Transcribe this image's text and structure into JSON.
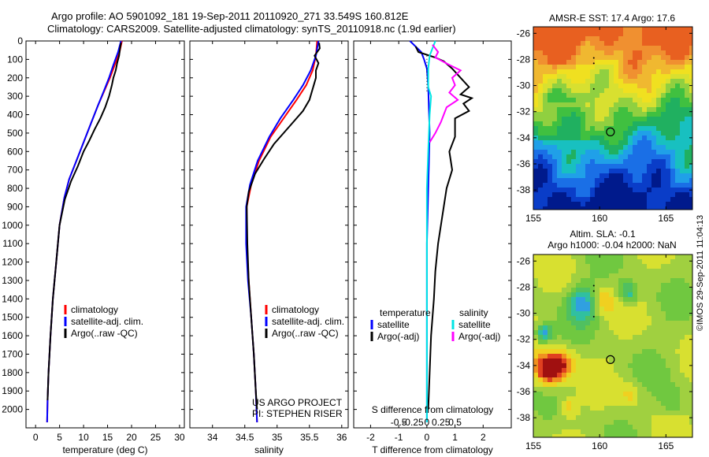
{
  "header": {
    "line1": "Argo profile: AO 5901092_181 19-Sep-2011 20110920_271 33.549S 160.812E",
    "line2": "Climatology: CARS2009. Satellite-adjusted climatology: synTS_20110918.nc (1.9d earlier)"
  },
  "colors": {
    "climatology": "#ff0000",
    "satellite": "#0000ff",
    "argo": "#000000",
    "satellite_salinity": "#00e5e5",
    "argo_salinity_adj": "#ff00ff"
  },
  "chart_data": [
    {
      "type": "line",
      "xlabel": "temperature (deg C)",
      "ylabel": "",
      "xlim": [
        -2,
        31
      ],
      "ylim": [
        2100,
        0
      ],
      "xticks": [
        "0",
        "5",
        "10",
        "15",
        "20",
        "25",
        "30"
      ],
      "yticks": [
        "0",
        "100",
        "200",
        "300",
        "400",
        "500",
        "600",
        "700",
        "800",
        "900",
        "1000",
        "1100",
        "1200",
        "1300",
        "1400",
        "1500",
        "1600",
        "1700",
        "1800",
        "1900",
        "2000"
      ],
      "legend": [
        "climatology",
        "satellite-adj. clim.",
        "Argo(..raw -QC)"
      ],
      "series": [
        {
          "name": "climatology",
          "color": "#ff0000",
          "points": [
            [
              18,
              0
            ],
            [
              17.5,
              60
            ],
            [
              16.5,
              130
            ],
            [
              15.5,
              200
            ],
            [
              14.5,
              260
            ],
            [
              13,
              350
            ],
            [
              11.5,
              450
            ],
            [
              10,
              550
            ],
            [
              8.5,
              650
            ],
            [
              7,
              750
            ],
            [
              6,
              850
            ],
            [
              5,
              1000
            ],
            [
              4.3,
              1200
            ],
            [
              3.6,
              1400
            ],
            [
              3.1,
              1600
            ],
            [
              2.7,
              1800
            ],
            [
              2.5,
              1950
            ],
            [
              2.4,
              2070
            ]
          ]
        },
        {
          "name": "satellite-adj. clim.",
          "color": "#0000ff",
          "points": [
            [
              17.8,
              0
            ],
            [
              17.2,
              60
            ],
            [
              16.2,
              130
            ],
            [
              15.3,
              200
            ],
            [
              14.4,
              260
            ],
            [
              13,
              350
            ],
            [
              11.5,
              450
            ],
            [
              10,
              550
            ],
            [
              8.5,
              650
            ],
            [
              7,
              750
            ],
            [
              6,
              850
            ],
            [
              5,
              1000
            ],
            [
              4.3,
              1200
            ],
            [
              3.6,
              1400
            ],
            [
              3.1,
              1600
            ],
            [
              2.7,
              1800
            ],
            [
              2.5,
              1950
            ],
            [
              2.4,
              2070
            ]
          ]
        },
        {
          "name": "Argo(..raw -QC)",
          "color": "#000000",
          "points": [
            [
              17.8,
              10
            ],
            [
              17.6,
              40
            ],
            [
              17.4,
              80
            ],
            [
              17,
              120
            ],
            [
              16.7,
              160
            ],
            [
              16.2,
              200
            ],
            [
              15.9,
              240
            ],
            [
              15.3,
              300
            ],
            [
              14.5,
              360
            ],
            [
              13.5,
              420
            ],
            [
              12.3,
              480
            ],
            [
              11.2,
              540
            ],
            [
              10,
              600
            ],
            [
              8.8,
              680
            ],
            [
              7.4,
              760
            ],
            [
              6.1,
              860
            ],
            [
              5,
              1000
            ],
            [
              4.3,
              1200
            ],
            [
              3.6,
              1400
            ],
            [
              3.1,
              1600
            ],
            [
              2.7,
              1800
            ],
            [
              2.5,
              1950
            ]
          ]
        }
      ]
    },
    {
      "type": "line",
      "xlabel": "salinity",
      "ylabel": "",
      "xlim": [
        33.65,
        36.1
      ],
      "ylim": [
        2100,
        0
      ],
      "xticks": [
        "34",
        "34.5",
        "35",
        "35.5",
        "36"
      ],
      "legend": [
        "climatology",
        "satellite-adj. clim.",
        "Argo(..raw -QC)"
      ],
      "annotation": [
        "US ARGO PROJECT",
        "PI: STEPHEN RISER"
      ],
      "series": [
        {
          "name": "climatology",
          "color": "#ff0000",
          "points": [
            [
              35.62,
              0
            ],
            [
              35.6,
              80
            ],
            [
              35.55,
              160
            ],
            [
              35.45,
              240
            ],
            [
              35.3,
              320
            ],
            [
              35.1,
              420
            ],
            [
              34.9,
              520
            ],
            [
              34.72,
              650
            ],
            [
              34.6,
              780
            ],
            [
              34.53,
              900
            ],
            [
              34.53,
              1100
            ],
            [
              34.56,
              1300
            ],
            [
              34.6,
              1500
            ],
            [
              34.64,
              1700
            ],
            [
              34.67,
              1900
            ],
            [
              34.69,
              2070
            ]
          ]
        },
        {
          "name": "satellite-adj. clim.",
          "color": "#0000ff",
          "points": [
            [
              35.64,
              0
            ],
            [
              35.6,
              80
            ],
            [
              35.52,
              160
            ],
            [
              35.4,
              240
            ],
            [
              35.25,
              320
            ],
            [
              35.05,
              420
            ],
            [
              34.88,
              520
            ],
            [
              34.7,
              650
            ],
            [
              34.58,
              780
            ],
            [
              34.52,
              900
            ],
            [
              34.52,
              1100
            ],
            [
              34.55,
              1300
            ],
            [
              34.6,
              1500
            ],
            [
              34.64,
              1700
            ],
            [
              34.67,
              1900
            ],
            [
              34.69,
              2070
            ]
          ]
        },
        {
          "name": "Argo(..raw -QC)",
          "color": "#000000",
          "points": [
            [
              35.65,
              10
            ],
            [
              35.66,
              40
            ],
            [
              35.58,
              80
            ],
            [
              35.64,
              120
            ],
            [
              35.6,
              160
            ],
            [
              35.6,
              200
            ],
            [
              35.55,
              260
            ],
            [
              35.5,
              320
            ],
            [
              35.4,
              380
            ],
            [
              35.25,
              440
            ],
            [
              35.1,
              500
            ],
            [
              34.95,
              560
            ],
            [
              34.8,
              640
            ],
            [
              34.66,
              720
            ],
            [
              34.56,
              820
            ],
            [
              34.53,
              900
            ],
            [
              34.54,
              1100
            ],
            [
              34.56,
              1300
            ],
            [
              34.6,
              1500
            ],
            [
              34.64,
              1700
            ],
            [
              34.67,
              1900
            ],
            [
              34.69,
              2000
            ]
          ]
        }
      ]
    },
    {
      "type": "line",
      "xlabel": "T difference from climatology",
      "xlabel2": "S difference from climatology",
      "xlim": [
        -2.6,
        3.0
      ],
      "ylim": [
        2100,
        0
      ],
      "xticks": [
        "-2",
        "-1",
        "0",
        "1",
        "2"
      ],
      "xticks_s": [
        "-0.5",
        "-0.25",
        "0",
        "0.25",
        "0.5"
      ],
      "legend_t_title": "temperature",
      "legend_s_title": "salinity",
      "legend": [
        "satellite",
        "Argo(-adj)",
        "satellite",
        "Argo(-adj)"
      ],
      "series": [
        {
          "name": "satellite",
          "color": "#0000ff",
          "points": [
            [
              -0.6,
              0
            ],
            [
              -0.2,
              60
            ],
            [
              -0.1,
              100
            ],
            [
              0,
              150
            ],
            [
              0.05,
              250
            ],
            [
              0.1,
              500
            ],
            [
              0.05,
              800
            ],
            [
              0,
              1100
            ],
            [
              0,
              1500
            ],
            [
              0,
              2070
            ]
          ]
        },
        {
          "name": "Argo(-adj)",
          "color": "#000000",
          "points": [
            [
              -0.4,
              30
            ],
            [
              -0.3,
              60
            ],
            [
              0.3,
              90
            ],
            [
              0.6,
              110
            ],
            [
              0.9,
              150
            ],
            [
              1.2,
              200
            ],
            [
              1.5,
              250
            ],
            [
              1.2,
              290
            ],
            [
              1.6,
              310
            ],
            [
              1.3,
              340
            ],
            [
              1.5,
              380
            ],
            [
              1.0,
              420
            ],
            [
              1.0,
              520
            ],
            [
              0.8,
              600
            ],
            [
              0.9,
              700
            ],
            [
              0.7,
              800
            ],
            [
              0.6,
              900
            ],
            [
              0.5,
              1000
            ],
            [
              0.4,
              1100
            ],
            [
              0.3,
              1250
            ],
            [
              0.25,
              1400
            ],
            [
              0.2,
              1500
            ],
            [
              0.15,
              1600
            ],
            [
              0.1,
              1800
            ],
            [
              0.05,
              2000
            ]
          ]
        },
        {
          "name": "satellite",
          "color": "#00e5e5",
          "points": [
            [
              0.3,
              0
            ],
            [
              0.2,
              40
            ],
            [
              0.1,
              80
            ],
            [
              0.05,
              150
            ],
            [
              0.05,
              250
            ],
            [
              0.15,
              300
            ],
            [
              0.1,
              400
            ],
            [
              0.05,
              600
            ],
            [
              0,
              800
            ],
            [
              0,
              1100
            ],
            [
              0,
              1500
            ],
            [
              0,
              2070
            ]
          ]
        },
        {
          "name": "Argo(-adj)",
          "color": "#ff00ff",
          "points": [
            [
              0.2,
              20
            ],
            [
              0.4,
              60
            ],
            [
              0.3,
              90
            ],
            [
              0.8,
              130
            ],
            [
              1.2,
              160
            ],
            [
              0.9,
              200
            ],
            [
              1.0,
              240
            ],
            [
              0.8,
              280
            ],
            [
              1.1,
              320
            ],
            [
              0.7,
              360
            ],
            [
              0.6,
              400
            ],
            [
              0.5,
              440
            ],
            [
              0.3,
              500
            ],
            [
              0.1,
              550
            ]
          ]
        },
        {
          "name": "dotted",
          "color": "#000000",
          "points": [
            [
              0,
              80
            ],
            [
              0,
              280
            ]
          ]
        }
      ]
    },
    {
      "type": "heatmap",
      "title": "AMSR-E SST: 17.4 Argo: 17.6",
      "xlim": [
        155,
        167
      ],
      "ylim": [
        -39.5,
        -25.5
      ],
      "xticks": [
        "155",
        "160",
        "165"
      ],
      "yticks": [
        "-26",
        "-28",
        "-30",
        "-32",
        "-34",
        "-36",
        "-38"
      ],
      "marker": {
        "lon": 160.812,
        "lat": -33.549
      }
    },
    {
      "type": "heatmap",
      "title": "Altim. SLA: -0.1",
      "title2": "Argo h1000: -0.04 h2000: NaN",
      "xlim": [
        155,
        167
      ],
      "ylim": [
        -39.5,
        -25.5
      ],
      "xticks": [
        "155",
        "160",
        "165"
      ],
      "yticks": [
        "-26",
        "-28",
        "-30",
        "-32",
        "-34",
        "-36",
        "-38"
      ],
      "marker": {
        "lon": 160.812,
        "lat": -33.549
      }
    }
  ],
  "footer": {
    "credit": "©IMOS 29-Sep-2011 11:04:13"
  }
}
